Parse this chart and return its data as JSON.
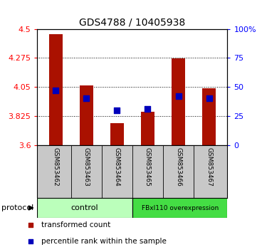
{
  "title": "GDS4788 / 10405938",
  "samples": [
    "GSM853462",
    "GSM853463",
    "GSM853464",
    "GSM853465",
    "GSM853466",
    "GSM853467"
  ],
  "red_values": [
    4.46,
    4.06,
    3.77,
    3.86,
    4.27,
    4.04
  ],
  "blue_values": [
    47,
    40,
    30,
    31,
    42,
    40
  ],
  "ymin": 3.6,
  "ymax": 4.5,
  "y_ticks": [
    3.6,
    3.825,
    4.05,
    4.275,
    4.5
  ],
  "y_right_ticks": [
    0,
    25,
    50,
    75,
    100
  ],
  "control_color": "#BBFFBB",
  "overexp_color": "#44DD44",
  "bar_color": "#AA1100",
  "dot_color": "#0000BB",
  "bg_color": "#C8C8C8",
  "legend_red_label": "transformed count",
  "legend_blue_label": "percentile rank within the sample",
  "protocol_label": "protocol",
  "group1_label": "control",
  "group2_label": "FBxl110 overexpression",
  "title_fontsize": 10,
  "tick_fontsize": 8,
  "label_fontsize": 6.5,
  "legend_fontsize": 7.5,
  "group_fontsize": 8,
  "bar_width": 0.45
}
